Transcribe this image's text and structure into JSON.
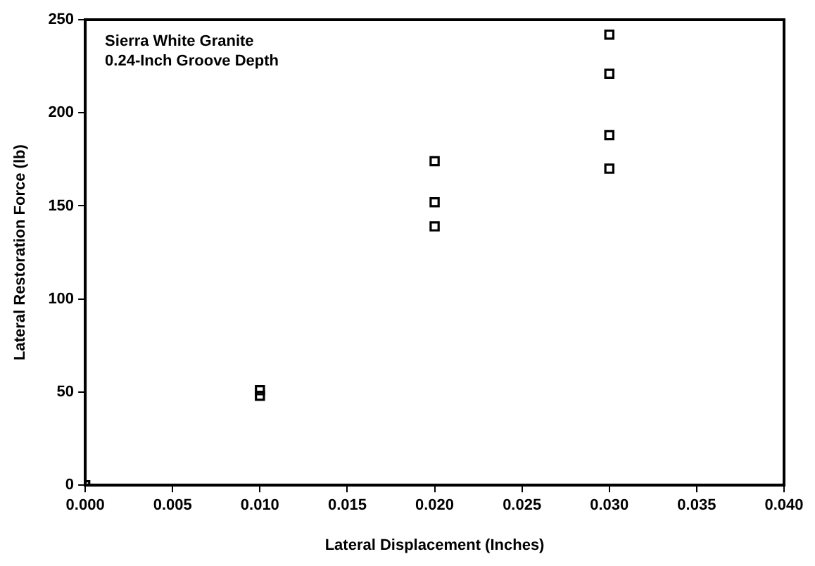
{
  "chart_data": {
    "type": "scatter",
    "xlabel": "Lateral Displacement (Inches)",
    "ylabel": "Lateral Restoration Force (lb)",
    "annotations": [
      "Sierra White Granite",
      "0.24-Inch Groove Depth"
    ],
    "x": [
      0,
      0.01,
      0.01,
      0.02,
      0.02,
      0.02,
      0.03,
      0.03,
      0.03,
      0.03
    ],
    "values": [
      0,
      51,
      48,
      174,
      152,
      139,
      242,
      221,
      188,
      170
    ],
    "color": "#000000",
    "marker": "square",
    "grid": false,
    "legend": false,
    "xlim": [
      0,
      0.04
    ],
    "xticks": [
      {
        "value": 0,
        "label": "0.000"
      },
      {
        "value": 0.005,
        "label": "0.005"
      },
      {
        "value": 0.01,
        "label": "0.010"
      },
      {
        "value": 0.015,
        "label": "0.015"
      },
      {
        "value": 0.02,
        "label": "0.020"
      },
      {
        "value": 0.025,
        "label": "0.025"
      },
      {
        "value": 0.03,
        "label": "0.030"
      },
      {
        "value": 0.035,
        "label": "0.035"
      },
      {
        "value": 0.04,
        "label": "0.040"
      }
    ],
    "ylim": [
      0,
      250
    ],
    "yticks": [
      0,
      50,
      100,
      150,
      200,
      250
    ]
  }
}
